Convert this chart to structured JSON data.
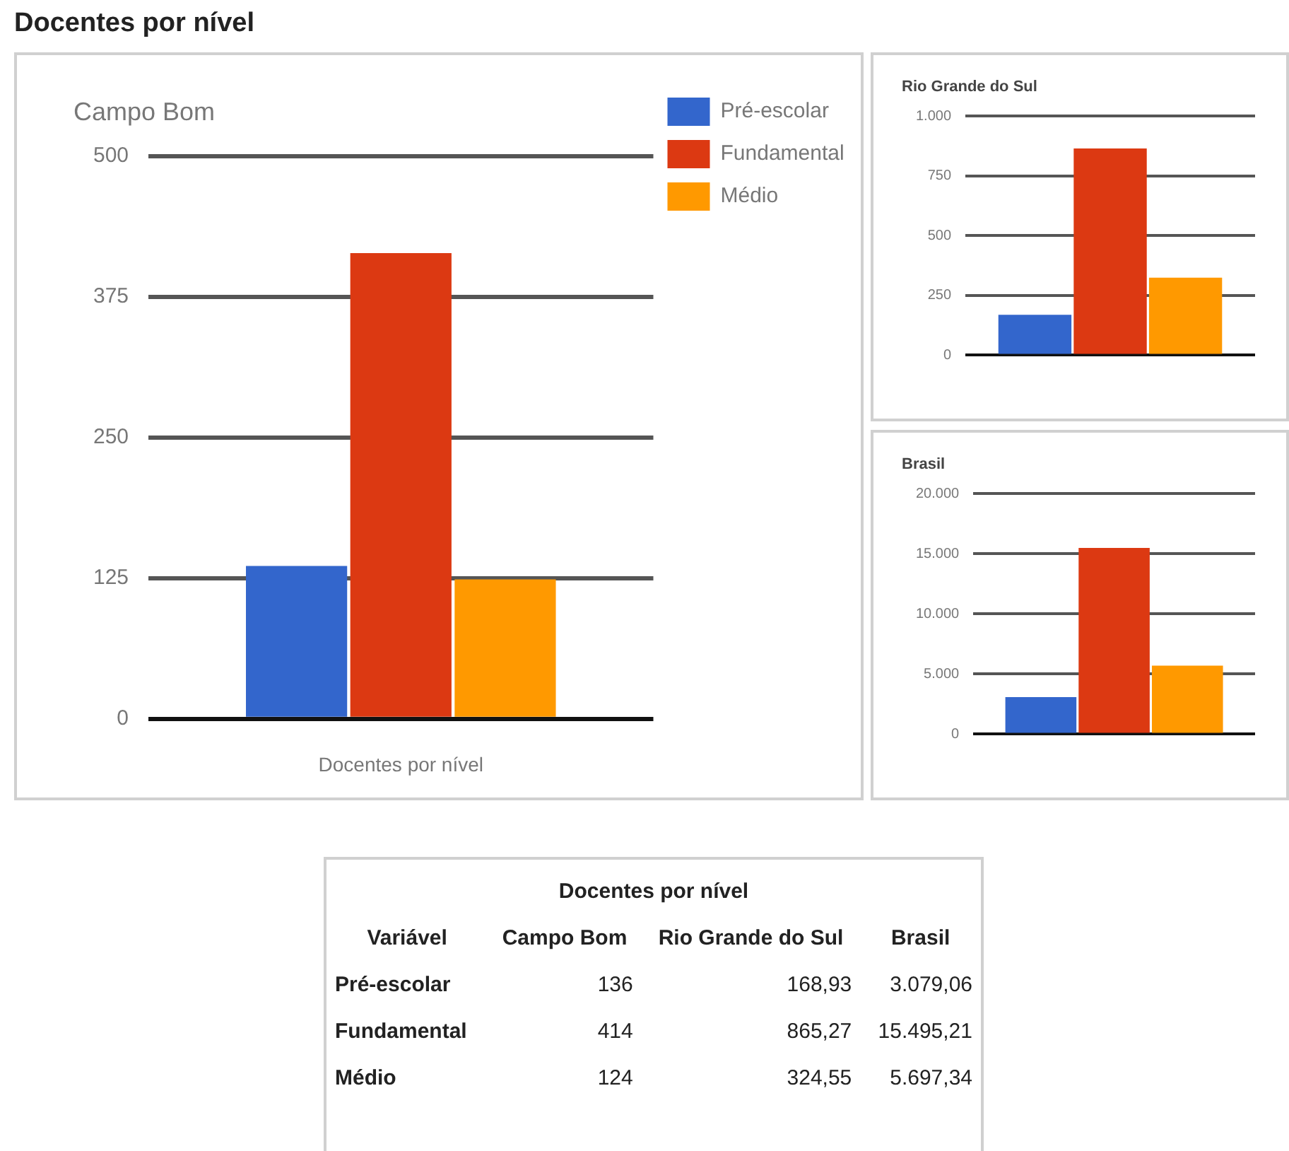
{
  "chart_data": [
    {
      "type": "bar",
      "title": "Campo Bom",
      "xlabel": "Docentes por nível",
      "categories": [
        null
      ],
      "series": [
        {
          "name": "Pré-escolar",
          "color": "#3366cc",
          "values": [
            136
          ]
        },
        {
          "name": "Fundamental",
          "color": "#dc3912",
          "values": [
            414
          ]
        },
        {
          "name": "Médio",
          "color": "#ff9900",
          "values": [
            124
          ]
        }
      ],
      "ylim": [
        0,
        500
      ],
      "yticks": [
        0,
        125,
        250,
        375,
        500
      ],
      "grid": "y",
      "legend": "top right",
      "annotations": [
        "Docentes por nível"
      ]
    },
    {
      "type": "bar",
      "title": "Rio Grande do Sul",
      "categories": [
        null
      ],
      "series": [
        {
          "color": "#3366cc",
          "values": [
            168.93
          ]
        },
        {
          "color": "#dc3912",
          "values": [
            865.27
          ]
        },
        {
          "color": "#ff9900",
          "values": [
            324.55
          ]
        }
      ],
      "ylim": [
        0,
        1000
      ],
      "yticks": [
        0,
        250,
        500,
        750,
        {
          "value": 1000,
          "label": "1.000"
        }
      ],
      "grid": "y"
    },
    {
      "type": "bar",
      "title": "Brasil",
      "categories": [
        null
      ],
      "series": [
        {
          "color": "#3366cc",
          "values": [
            3079.06
          ]
        },
        {
          "color": "#dc3912",
          "values": [
            15495.21
          ]
        },
        {
          "color": "#ff9900",
          "values": [
            5697.34
          ]
        }
      ],
      "ylim": [
        0,
        20000
      ],
      "yticks": [
        0,
        {
          "value": 5000,
          "label": "5.000"
        },
        {
          "value": 10000,
          "label": "10.000"
        },
        {
          "value": 15000,
          "label": "15.000"
        },
        {
          "value": 20000,
          "label": "20.000"
        }
      ],
      "grid": "y"
    },
    {
      "type": "other",
      "title": "Docentes por nível",
      "xlabel": "Variável",
      "categories": [
        "Pré-escolar",
        "Fundamental",
        "Médio"
      ],
      "series": [
        {
          "name": "Campo Bom",
          "values": [
            136,
            414,
            124
          ],
          "value_labels": [
            "136",
            "414",
            "124"
          ]
        },
        {
          "name": "Rio Grande do Sul",
          "values": [
            168.93,
            865.27,
            324.55
          ],
          "value_labels": [
            "168,93",
            "865,27",
            "324,55"
          ]
        },
        {
          "name": "Brasil",
          "values": [
            3079.06,
            15495.21,
            5697.34
          ],
          "value_labels": [
            "3.079,06",
            "15.495,21",
            "5.697,34"
          ]
        }
      ]
    }
  ]
}
